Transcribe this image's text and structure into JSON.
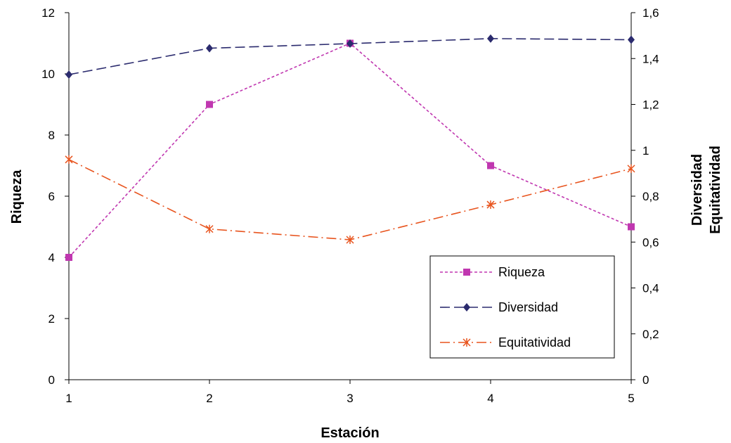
{
  "chart_data": {
    "type": "line",
    "x": [
      1,
      2,
      3,
      4,
      5
    ],
    "xlabel": "Estación",
    "xticks": [
      "1",
      "2",
      "3",
      "4",
      "5"
    ],
    "ylabel_left": "Riqueza",
    "ylim_left": [
      0,
      12
    ],
    "yticks_left": [
      "0",
      "2",
      "4",
      "6",
      "8",
      "10",
      "12"
    ],
    "ylabel_right": [
      "Diversidad",
      "Equitatividad"
    ],
    "ylim_right": [
      0,
      1.6
    ],
    "yticks_right": [
      "0",
      "0,2",
      "0,4",
      "0,6",
      "0,8",
      "1",
      "1,2",
      "1,4",
      "1,6"
    ],
    "grid": false,
    "legend_position": "bottom-right",
    "series": [
      {
        "name": "Riqueza",
        "axis": "left",
        "values": [
          4,
          9,
          11,
          7,
          5
        ],
        "color": "#c037b0",
        "marker": "square",
        "dash": "dashed-short"
      },
      {
        "name": "Diversidad",
        "axis": "right",
        "values": [
          1.33,
          1.445,
          1.465,
          1.487,
          1.482
        ],
        "color": "#2b2b6e",
        "marker": "diamond",
        "dash": "dashed-long"
      },
      {
        "name": "Equitatividad",
        "axis": "right",
        "values": [
          0.96,
          0.657,
          0.61,
          0.763,
          0.92
        ],
        "color": "#e8541e",
        "marker": "asterisk",
        "dash": "dash-dot"
      }
    ]
  }
}
